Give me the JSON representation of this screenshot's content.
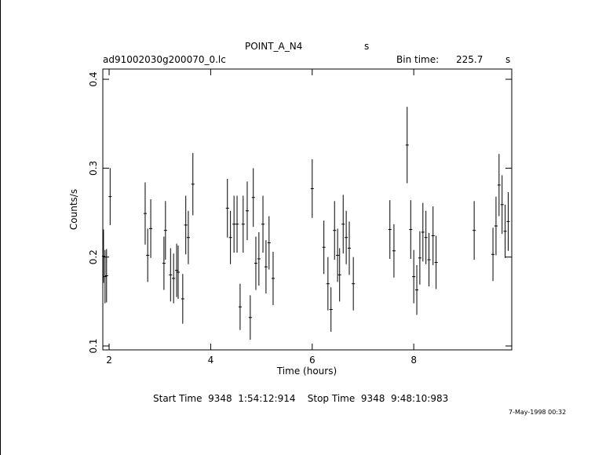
{
  "chart_data": {
    "type": "errorbar",
    "title": "POINT_A_N4",
    "title_unit": "s",
    "file_name": "ad91002030g200070_0.lc",
    "bin_time_label": "Bin time:",
    "bin_time": 225.7,
    "bin_time_unit": "s",
    "x_label": "Time (hours)",
    "y_label": "Counts/s",
    "footer": "Start Time  9348  1:54:12:914    Stop Time  9348  9:48:10:983",
    "date": "7-May-1998 00:32",
    "xlim": [
      1.876,
      9.93
    ],
    "xticks": [
      2,
      4,
      6,
      8
    ],
    "ylim": [
      0.0956,
      0.4115
    ],
    "yticks": [
      0.1,
      0.2,
      0.3,
      0.4
    ],
    "color": "#000000",
    "x": [
      1.89,
      1.92,
      1.95,
      2.02,
      2.71,
      2.76,
      2.82,
      3.08,
      3.11,
      3.21,
      3.27,
      3.33,
      3.36,
      3.45,
      3.51,
      3.56,
      3.65,
      4.33,
      4.39,
      4.46,
      4.52,
      4.58,
      4.64,
      4.72,
      4.78,
      4.84,
      4.89,
      4.95,
      5.03,
      5.09,
      5.15,
      5.23,
      6.0,
      6.23,
      6.31,
      6.37,
      6.44,
      6.5,
      6.54,
      6.61,
      6.67,
      6.73,
      6.81,
      7.53,
      7.61,
      7.87,
      7.94,
      8.0,
      8.06,
      8.12,
      8.18,
      8.24,
      8.3,
      8.38,
      8.44,
      9.19,
      9.56,
      9.62,
      9.68,
      9.74,
      9.8,
      9.86
    ],
    "values": [
      0.201,
      0.178,
      0.179,
      0.268,
      0.249,
      0.202,
      0.232,
      0.193,
      0.23,
      0.18,
      0.176,
      0.185,
      0.183,
      0.153,
      0.236,
      0.222,
      0.282,
      0.255,
      0.222,
      0.237,
      0.237,
      0.144,
      0.237,
      0.252,
      0.132,
      0.267,
      0.193,
      0.198,
      0.237,
      0.189,
      0.216,
      0.176,
      0.277,
      0.211,
      0.17,
      0.141,
      0.23,
      0.202,
      0.18,
      0.237,
      0.222,
      0.21,
      0.17,
      0.231,
      0.207,
      0.326,
      0.231,
      0.178,
      0.163,
      0.199,
      0.228,
      0.222,
      0.197,
      0.224,
      0.194,
      0.23,
      0.203,
      0.235,
      0.281,
      0.259,
      0.229,
      0.24
    ],
    "errors": [
      0.03,
      0.03,
      0.03,
      0.032,
      0.035,
      0.03,
      0.033,
      0.03,
      0.033,
      0.03,
      0.028,
      0.03,
      0.03,
      0.028,
      0.033,
      0.03,
      0.035,
      0.033,
      0.03,
      0.032,
      0.032,
      0.026,
      0.032,
      0.033,
      0.025,
      0.033,
      0.03,
      0.03,
      0.032,
      0.03,
      0.03,
      0.03,
      0.033,
      0.03,
      0.03,
      0.025,
      0.033,
      0.03,
      0.03,
      0.033,
      0.03,
      0.03,
      0.03,
      0.033,
      0.03,
      0.043,
      0.033,
      0.03,
      0.028,
      0.03,
      0.033,
      0.03,
      0.03,
      0.033,
      0.03,
      0.033,
      0.03,
      0.033,
      0.035,
      0.033,
      0.03,
      0.033
    ]
  }
}
